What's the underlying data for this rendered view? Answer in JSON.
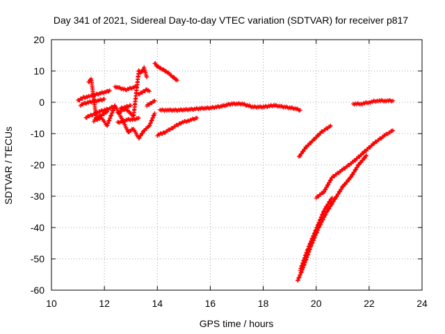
{
  "chart_data": {
    "type": "scatter",
    "title": "Day 341 of 2021, Sidereal Day-to-day VTEC variation (SDTVAR) for receiver p817",
    "xlabel": "GPS time / hours",
    "ylabel": "SDTVAR / TECUs",
    "xlim": [
      10,
      24
    ],
    "ylim": [
      -60,
      20
    ],
    "xticks": [
      10,
      12,
      14,
      16,
      18,
      20,
      22,
      24
    ],
    "yticks": [
      20,
      10,
      0,
      -10,
      -20,
      -30,
      -40,
      -50,
      -60
    ],
    "grid": true,
    "legend": "none",
    "marker": "plus",
    "color": "#ff0000",
    "series": [
      {
        "x": [
          11.0,
          11.1,
          11.2,
          11.4,
          11.5,
          11.7,
          11.9,
          12.1,
          12.2
        ],
        "y": [
          0.5,
          1.0,
          1.5,
          1.8,
          2.0,
          2.5,
          3.0,
          3.4,
          3.8
        ]
      },
      {
        "x": [
          11.1,
          11.2,
          11.4,
          11.6,
          11.8,
          12.0
        ],
        "y": [
          -1.0,
          -0.5,
          0.0,
          0.3,
          0.6,
          1.0
        ]
      },
      {
        "x": [
          11.3,
          11.4,
          11.6,
          11.8,
          12.0,
          12.2,
          12.3
        ],
        "y": [
          -5.0,
          -4.5,
          -3.8,
          -3.0,
          -2.5,
          -2.0,
          -1.5
        ]
      },
      {
        "x": [
          11.6,
          11.7,
          11.9,
          12.0,
          12.1
        ],
        "y": [
          -6.0,
          -5.0,
          -4.0,
          -3.5,
          -3.0
        ]
      },
      {
        "x": [
          12.4,
          12.6,
          12.8,
          13.0,
          13.2
        ],
        "y": [
          5.0,
          4.5,
          4.0,
          4.5,
          5.0
        ]
      },
      {
        "x": [
          12.5,
          12.7,
          12.9,
          13.1,
          13.3
        ],
        "y": [
          -6.5,
          -6.0,
          -5.5,
          -5.5,
          -5.0
        ]
      },
      {
        "x": [
          12.6,
          12.8,
          13.0
        ],
        "y": [
          -2.0,
          -1.5,
          -1.0
        ]
      },
      {
        "x": [
          13.3,
          13.4,
          13.5,
          13.6,
          13.7
        ],
        "y": [
          2.5,
          3.0,
          3.5,
          4.0,
          3.5
        ]
      },
      {
        "x": [
          13.6,
          13.7,
          13.8,
          13.9
        ],
        "y": [
          -1.0,
          -0.5,
          0.0,
          0.5
        ]
      },
      {
        "x": [
          11.4,
          11.5,
          11.7,
          11.9,
          12.1,
          12.4,
          12.7,
          12.9,
          13.1,
          13.3,
          13.5,
          13.7,
          13.9
        ],
        "y": [
          6.5,
          7.5,
          -5.5,
          -5.0,
          -7.5,
          -1.0,
          -6.0,
          -9.5,
          -8.5,
          -11.5,
          -9.0,
          -7.5,
          -3.5
        ]
      },
      {
        "x": [
          12.5,
          12.8,
          13.1,
          13.3,
          13.4,
          13.5,
          13.6
        ],
        "y": [
          -3.5,
          -2.0,
          -4.5,
          10.0,
          9.5,
          11.0,
          8.0
        ]
      },
      {
        "x": [
          13.9,
          14.0,
          14.2,
          14.4,
          14.6,
          14.75
        ],
        "y": [
          12.5,
          11.5,
          10.5,
          9.5,
          8.0,
          7.0
        ]
      },
      {
        "x": [
          14.1,
          14.4,
          14.8,
          15.2,
          15.6,
          16.0,
          16.4,
          16.8,
          17.2,
          17.6,
          18.0,
          18.4,
          18.8,
          19.2,
          19.4
        ],
        "y": [
          -2.5,
          -2.5,
          -2.5,
          -2.3,
          -2.0,
          -1.8,
          -1.3,
          -0.5,
          -0.5,
          -1.5,
          -1.5,
          -1.0,
          -1.5,
          -2.0,
          -2.5
        ]
      },
      {
        "x": [
          14.0,
          14.3,
          14.6,
          14.9,
          15.2,
          15.5
        ],
        "y": [
          -10.5,
          -9.5,
          -8.0,
          -6.5,
          -5.8,
          -5.0
        ]
      },
      {
        "x": [
          21.4,
          21.7,
          22.0,
          22.3,
          22.6,
          22.9
        ],
        "y": [
          -0.5,
          -0.5,
          0.0,
          0.5,
          0.5,
          0.5
        ]
      },
      {
        "x": [
          19.35,
          19.6,
          19.9,
          20.2,
          20.55
        ],
        "y": [
          -17.5,
          -14.5,
          -12.0,
          -9.5,
          -7.5
        ]
      },
      {
        "x": [
          20.0,
          20.3,
          20.6,
          21.0,
          21.4,
          21.8,
          22.2,
          22.6,
          22.9
        ],
        "y": [
          -30.5,
          -28.5,
          -24.0,
          -21.5,
          -19.0,
          -16.0,
          -13.0,
          -10.5,
          -9.0
        ]
      },
      {
        "x": [
          19.3,
          19.5,
          19.8,
          20.1,
          20.4,
          20.7,
          21.0,
          21.3,
          21.6,
          21.9
        ],
        "y": [
          -57.0,
          -53.0,
          -46.0,
          -40.0,
          -35.0,
          -31.0,
          -27.0,
          -24.0,
          -20.0,
          -17.0
        ]
      },
      {
        "x": [
          19.4,
          19.7,
          20.0,
          20.3,
          20.6
        ],
        "y": [
          -53.5,
          -46.5,
          -40.5,
          -34.5,
          -30.5
        ]
      }
    ]
  }
}
